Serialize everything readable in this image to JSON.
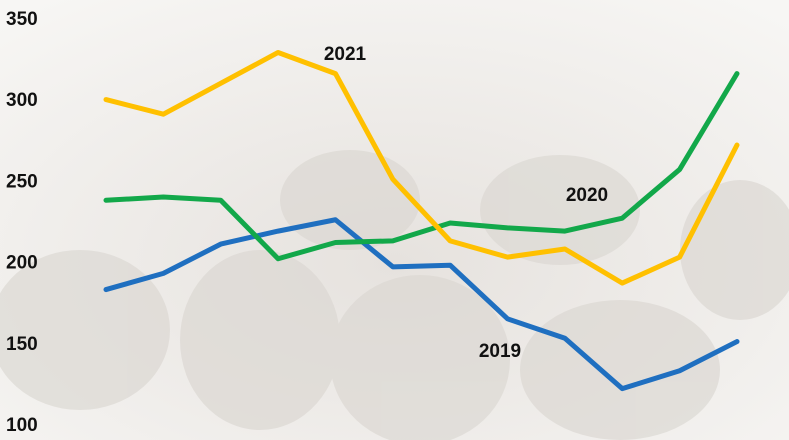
{
  "chart_data": {
    "type": "line",
    "categories": [
      null,
      null,
      null,
      null,
      null,
      null,
      null,
      null,
      null,
      null,
      null,
      null
    ],
    "series": [
      {
        "name": "2019",
        "color": "#1f6fc0",
        "values": [
          184,
          194,
          212,
          220,
          227,
          198,
          199,
          166,
          154,
          123,
          134,
          152
        ]
      },
      {
        "name": "2020",
        "color": "#12a84a",
        "values": [
          239,
          241,
          239,
          203,
          213,
          214,
          225,
          222,
          220,
          228,
          258,
          317
        ]
      },
      {
        "name": "2021",
        "color": "#ffc000",
        "values": [
          301,
          292,
          311,
          330,
          317,
          252,
          214,
          204,
          209,
          188,
          204,
          273
        ]
      }
    ],
    "ylim": [
      100,
      350
    ],
    "yticks": [
      100,
      150,
      200,
      250,
      300,
      350
    ]
  }
}
